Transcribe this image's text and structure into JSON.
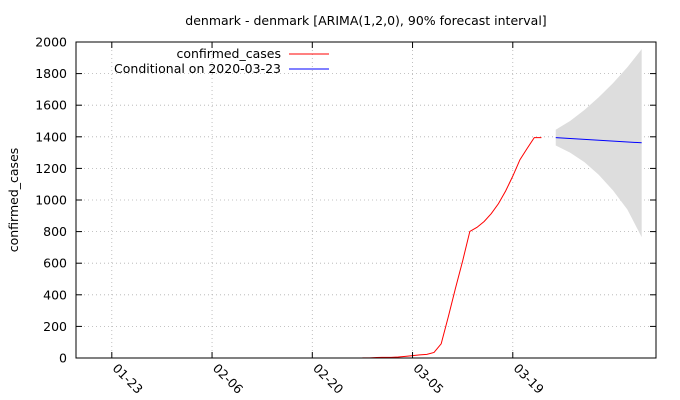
{
  "chart_data": {
    "type": "line",
    "title": "denmark - denmark [ARIMA(1,2,0), 90% forecast interval]",
    "ylabel": "confirmed_cases",
    "xlabel": "",
    "grid": true,
    "legend_position": "top-left",
    "xlim": [
      "2020-01-18",
      "2020-04-08"
    ],
    "ylim": [
      0,
      2000
    ],
    "x_ticks": [
      {
        "date": "2020-01-23",
        "label": "01-23"
      },
      {
        "date": "2020-02-06",
        "label": "02-06"
      },
      {
        "date": "2020-02-20",
        "label": "02-20"
      },
      {
        "date": "2020-03-05",
        "label": "03-05"
      },
      {
        "date": "2020-03-19",
        "label": "03-19"
      }
    ],
    "y_ticks": [
      0,
      200,
      400,
      600,
      800,
      1000,
      1200,
      1400,
      1600,
      1800,
      2000
    ],
    "series": [
      {
        "name": "confirmed_cases",
        "color": "#ff0000",
        "points": [
          [
            "2020-02-27",
            1
          ],
          [
            "2020-02-28",
            1
          ],
          [
            "2020-02-29",
            3
          ],
          [
            "2020-03-01",
            4
          ],
          [
            "2020-03-02",
            4
          ],
          [
            "2020-03-03",
            6
          ],
          [
            "2020-03-04",
            10
          ],
          [
            "2020-03-05",
            15
          ],
          [
            "2020-03-06",
            20
          ],
          [
            "2020-03-07",
            23
          ],
          [
            "2020-03-08",
            35
          ],
          [
            "2020-03-09",
            90
          ],
          [
            "2020-03-10",
            262
          ],
          [
            "2020-03-11",
            442
          ],
          [
            "2020-03-12",
            615
          ],
          [
            "2020-03-13",
            801
          ],
          [
            "2020-03-14",
            827
          ],
          [
            "2020-03-15",
            864
          ],
          [
            "2020-03-16",
            914
          ],
          [
            "2020-03-17",
            977
          ],
          [
            "2020-03-18",
            1057
          ],
          [
            "2020-03-19",
            1151
          ],
          [
            "2020-03-20",
            1255
          ],
          [
            "2020-03-21",
            1326
          ],
          [
            "2020-03-22",
            1395
          ],
          [
            "2020-03-23",
            1395
          ]
        ]
      },
      {
        "name": "Conditional on 2020-03-23",
        "color": "#0000ff",
        "points": [
          [
            "2020-03-25",
            1395
          ],
          [
            "2020-04-06",
            1362
          ]
        ]
      }
    ],
    "forecast_interval": {
      "color": "#dddddd",
      "points": [
        [
          "2020-03-25",
          1345,
          1445
        ],
        [
          "2020-03-27",
          1300,
          1500
        ],
        [
          "2020-03-29",
          1240,
          1570
        ],
        [
          "2020-03-31",
          1160,
          1650
        ],
        [
          "2020-04-02",
          1060,
          1740
        ],
        [
          "2020-04-04",
          940,
          1840
        ],
        [
          "2020-04-06",
          765,
          1955
        ]
      ]
    }
  }
}
